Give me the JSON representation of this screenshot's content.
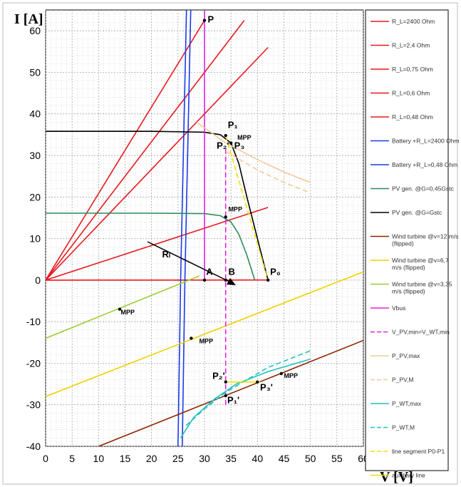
{
  "chart_data": {
    "type": "line",
    "xlabel": "V [V]",
    "ylabel": "I [A]",
    "xlim": [
      0,
      60
    ],
    "ylim": [
      -40,
      65
    ],
    "xticks": [
      0,
      5,
      10,
      15,
      20,
      25,
      30,
      35,
      40,
      45,
      50,
      55,
      60
    ],
    "yticks": [
      -40,
      -30,
      -20,
      -10,
      0,
      10,
      20,
      30,
      40,
      50,
      60
    ],
    "grid": true,
    "legend_position": "right",
    "series": [
      {
        "name": "R_L=2400 Ohm",
        "color": "#e8191e",
        "dash": false,
        "points": [
          [
            0,
            0
          ],
          [
            42,
            0.02
          ]
        ]
      },
      {
        "name": "R_L=2,4 Ohm",
        "color": "#e8191e",
        "dash": false,
        "points": [
          [
            0,
            0
          ],
          [
            42,
            17.5
          ]
        ]
      },
      {
        "name": "R_L=0,75 Ohm",
        "color": "#e8191e",
        "dash": false,
        "points": [
          [
            0,
            0
          ],
          [
            42,
            56
          ]
        ]
      },
      {
        "name": "R_L=0,6 Ohm",
        "color": "#e8191e",
        "dash": false,
        "points": [
          [
            0,
            0
          ],
          [
            37.5,
            62.5
          ]
        ]
      },
      {
        "name": "R_L=0,48 Ohm",
        "color": "#e8191e",
        "dash": false,
        "points": [
          [
            0,
            0
          ],
          [
            30,
            62.5
          ]
        ]
      },
      {
        "name": "Battery +R_L=2400 Ohm",
        "color": "#1a3ae8",
        "dash": false,
        "points": [
          [
            25,
            -40
          ],
          [
            25.5,
            0
          ],
          [
            26.6,
            65
          ]
        ]
      },
      {
        "name": "Battery +R_L=0,48 Ohm",
        "color": "#1a3ae8",
        "dash": false,
        "points": [
          [
            25.8,
            -40
          ],
          [
            26.3,
            0
          ],
          [
            27.4,
            65
          ]
        ]
      },
      {
        "name": "PV gen. @G=0,45Gstc",
        "color": "#2e8b57",
        "dash": false,
        "points": [
          [
            0,
            16.1
          ],
          [
            20,
            16.1
          ],
          [
            30,
            16
          ],
          [
            33,
            15.5
          ],
          [
            35,
            14
          ],
          [
            36.5,
            11
          ],
          [
            38,
            6
          ],
          [
            39.5,
            0
          ]
        ]
      },
      {
        "name": "PV gen. @G=Gstc",
        "color": "#000000",
        "dash": false,
        "points": [
          [
            0,
            35.8
          ],
          [
            20,
            35.8
          ],
          [
            30,
            35.6
          ],
          [
            33,
            35
          ],
          [
            35,
            33
          ],
          [
            36.5,
            28
          ],
          [
            38,
            20
          ],
          [
            40,
            10
          ],
          [
            42,
            0
          ]
        ]
      },
      {
        "name": "Wind turbine @v=12 m/s (flipped)",
        "color": "#8b2500",
        "dash": false,
        "points": [
          [
            10,
            -40
          ],
          [
            60,
            -14.5
          ]
        ]
      },
      {
        "name": "Wind turbine @v=6,7 m/s (flipped)",
        "color": "#f0d000",
        "dash": false,
        "points": [
          [
            0,
            -28
          ],
          [
            60,
            2
          ]
        ]
      },
      {
        "name": "Wind turbine @v=3,35 m/s (flipped)",
        "color": "#9acd32",
        "dash": false,
        "points": [
          [
            0,
            -14
          ],
          [
            29,
            1
          ]
        ]
      },
      {
        "name": "Vbus",
        "color": "#e020e0",
        "dash": false,
        "points": [
          [
            30,
            0
          ],
          [
            30,
            65
          ]
        ]
      },
      {
        "name": "V_PV,min=V_WT,min",
        "color": "#e020e0",
        "dash": true,
        "points": [
          [
            34,
            -30
          ],
          [
            34,
            32
          ]
        ]
      },
      {
        "name": "P_PV,max",
        "color": "#f5c89a",
        "dash": false,
        "points": [
          [
            28.5,
            38
          ],
          [
            34,
            33
          ],
          [
            40,
            29
          ],
          [
            45,
            26
          ],
          [
            50,
            23.5
          ]
        ]
      },
      {
        "name": "P_PV,M",
        "color": "#f5c89a",
        "dash": true,
        "points": [
          [
            34,
            31
          ],
          [
            40,
            26.5
          ],
          [
            45,
            23.5
          ],
          [
            50,
            21
          ]
        ]
      },
      {
        "name": "P_WT,max",
        "color": "#22c0c0",
        "dash": false,
        "points": [
          [
            25.5,
            -38
          ],
          [
            28,
            -33
          ],
          [
            32,
            -28.5
          ],
          [
            36,
            -25
          ],
          [
            42,
            -22
          ],
          [
            50,
            -19
          ]
        ]
      },
      {
        "name": "P_WT,M",
        "color": "#22c0c0",
        "dash": true,
        "points": [
          [
            26.5,
            -35
          ],
          [
            30,
            -31
          ],
          [
            34,
            -27
          ],
          [
            38,
            -24
          ],
          [
            42,
            -21
          ],
          [
            50,
            -17
          ]
        ]
      },
      {
        "name": "line segment P0-P1",
        "color": "#f0e000",
        "dash": true,
        "points": [
          [
            34,
            34.8
          ],
          [
            42,
            0
          ]
        ]
      },
      {
        "name": "auxiliary line",
        "color": "#f0e000",
        "dash": false,
        "points": [
          [
            34,
            -24.5
          ],
          [
            38,
            -24.5
          ],
          [
            40.5,
            -24.5
          ]
        ]
      }
    ],
    "annotations": [
      {
        "text": "P",
        "x": 30.6,
        "y": 62
      },
      {
        "text": "P₁",
        "x": 34.4,
        "y": 36.6
      },
      {
        "text": "MPP",
        "x": 36.2,
        "y": 33.8
      },
      {
        "text": "P₂'",
        "x": 32.3,
        "y": 31.6
      },
      {
        "text": "P₃",
        "x": 35.6,
        "y": 31.6
      },
      {
        "text": "MPP",
        "x": 34.5,
        "y": 16.5
      },
      {
        "text": "Rₗ",
        "x": 22,
        "y": 5.5
      },
      {
        "text": "A",
        "x": 30.3,
        "y": 1.3
      },
      {
        "text": "B",
        "x": 34.5,
        "y": 1.3
      },
      {
        "text": "P₀",
        "x": 42.4,
        "y": 1.3
      },
      {
        "text": "MPP",
        "x": 14.2,
        "y": -8.3
      },
      {
        "text": "MPP",
        "x": 29,
        "y": -15.2
      },
      {
        "text": "P₂'",
        "x": 31.5,
        "y": -23.8
      },
      {
        "text": "MPP",
        "x": 45,
        "y": -23.5
      },
      {
        "text": "P₃'",
        "x": 40.5,
        "y": -26.5
      },
      {
        "text": "P₁'",
        "x": 34.3,
        "y": -29.6
      }
    ],
    "markers": [
      [
        30,
        62.5
      ],
      [
        34,
        34.8
      ],
      [
        35,
        33
      ],
      [
        34,
        15.2
      ],
      [
        30,
        0
      ],
      [
        34,
        0
      ],
      [
        42,
        0
      ],
      [
        14,
        -7
      ],
      [
        27.5,
        -14
      ],
      [
        34,
        -24.5
      ],
      [
        44.5,
        -22.5
      ],
      [
        40,
        -24.5
      ],
      [
        34,
        -27.8
      ]
    ]
  }
}
